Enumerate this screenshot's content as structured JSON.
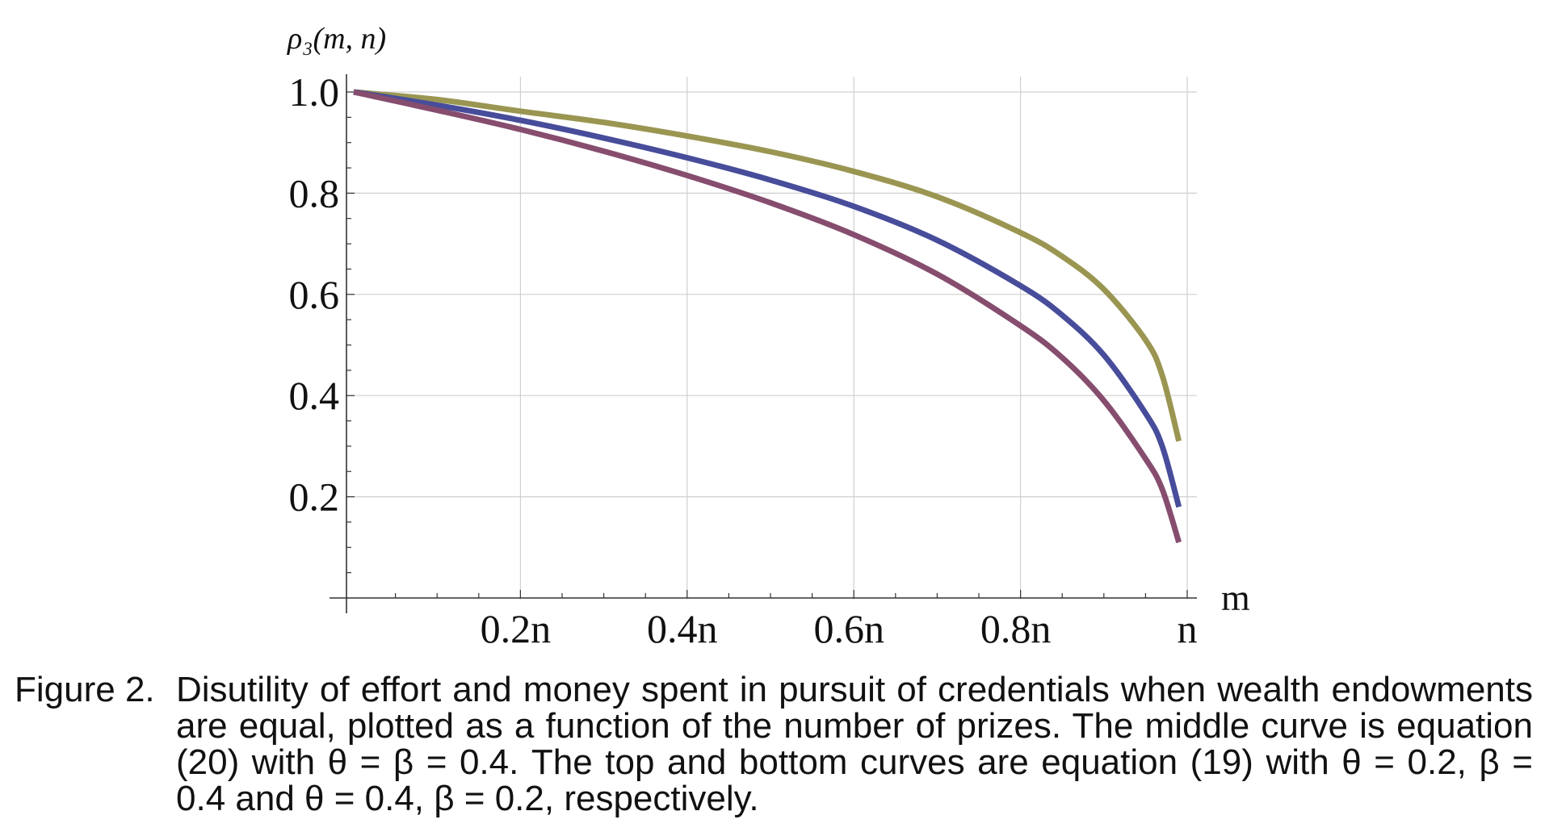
{
  "chart_data": {
    "type": "line",
    "xlabel": "m",
    "ylabel": "ρ₃(m, n)",
    "xlim": [
      0,
      1
    ],
    "ylim": [
      0,
      1.0
    ],
    "x_ticks": [
      {
        "value": 0.2,
        "label": "0.2n"
      },
      {
        "value": 0.4,
        "label": "0.4n"
      },
      {
        "value": 0.6,
        "label": "0.6n"
      },
      {
        "value": 0.8,
        "label": "0.8n"
      },
      {
        "value": 1.0,
        "label": "n"
      }
    ],
    "y_ticks": [
      {
        "value": 0.2,
        "label": "0.2"
      },
      {
        "value": 0.4,
        "label": "0.4"
      },
      {
        "value": 0.6,
        "label": "0.6"
      },
      {
        "value": 0.8,
        "label": "0.8"
      },
      {
        "value": 1.0,
        "label": "1.0"
      }
    ],
    "grid": true,
    "series": [
      {
        "color": "#9a9652",
        "x": [
          0,
          0.1,
          0.2,
          0.3,
          0.4,
          0.5,
          0.6,
          0.7,
          0.8,
          0.85,
          0.9,
          0.95,
          0.97,
          0.99
        ],
        "y": [
          1.0,
          0.985,
          0.962,
          0.94,
          0.913,
          0.882,
          0.843,
          0.793,
          0.722,
          0.675,
          0.61,
          0.51,
          0.44,
          0.31
        ]
      },
      {
        "color": "#474d9a",
        "x": [
          0,
          0.1,
          0.2,
          0.3,
          0.4,
          0.5,
          0.6,
          0.7,
          0.8,
          0.85,
          0.9,
          0.95,
          0.97,
          0.99
        ],
        "y": [
          1.0,
          0.974,
          0.944,
          0.909,
          0.87,
          0.826,
          0.774,
          0.707,
          0.617,
          0.559,
          0.48,
          0.365,
          0.3,
          0.18
        ]
      },
      {
        "color": "#864d6f",
        "x": [
          0,
          0.1,
          0.2,
          0.3,
          0.4,
          0.5,
          0.6,
          0.7,
          0.8,
          0.85,
          0.9,
          0.95,
          0.97,
          0.99
        ],
        "y": [
          1.0,
          0.964,
          0.926,
          0.883,
          0.835,
          0.781,
          0.718,
          0.64,
          0.538,
          0.475,
          0.39,
          0.275,
          0.215,
          0.11
        ]
      }
    ]
  },
  "caption": {
    "label": "Figure 2.",
    "text": "Disutility of effort and money spent in pursuit of credentials when wealth endowments are equal, plotted as a function of the number of prizes.  The middle curve is equation (20) with θ = β = 0.4.  The top and bottom curves are equation (19) with θ = 0.2, β = 0.4 and θ = 0.4, β = 0.2, respectively."
  }
}
